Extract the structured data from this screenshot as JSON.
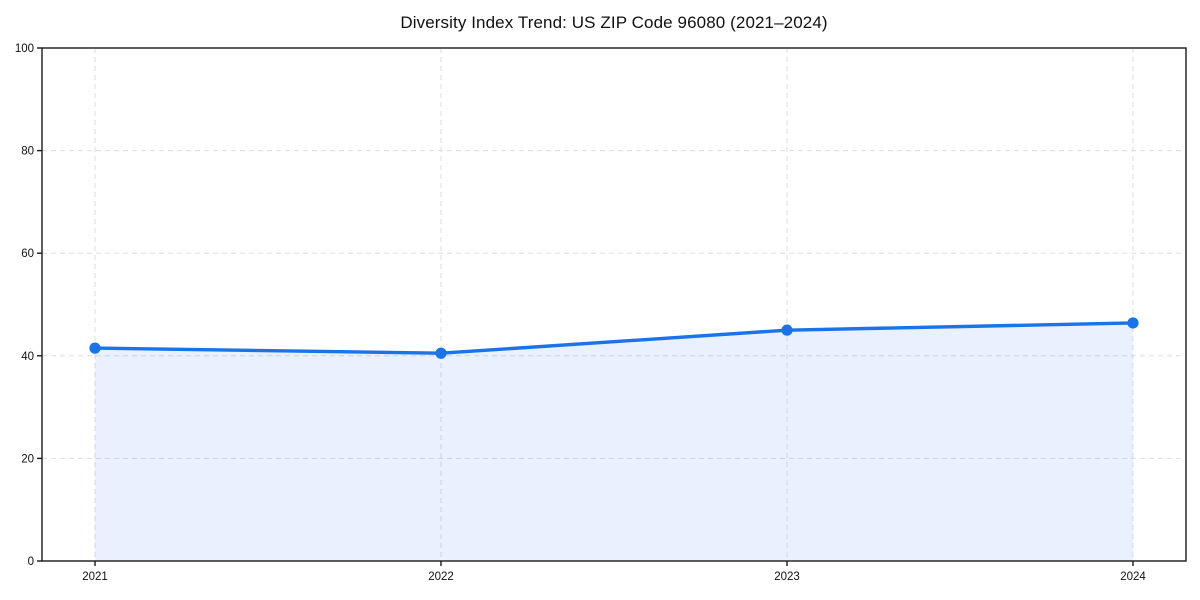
{
  "chart": {
    "title": "Diversity Index Trend: US ZIP Code 96080 (2021–2024)"
  },
  "chart_data": {
    "type": "area",
    "title": "Diversity Index Trend: US ZIP Code 96080 (2021–2024)",
    "xlabel": "",
    "ylabel": "",
    "x": [
      2021,
      2022,
      2023,
      2024
    ],
    "xticks": [
      "2021",
      "2022",
      "2023",
      "2024"
    ],
    "series": [
      {
        "name": "Diversity Index",
        "values": [
          41.5,
          40.5,
          45.0,
          46.4
        ]
      }
    ],
    "ylim": [
      0,
      100
    ],
    "yticks": [
      0,
      20,
      40,
      60,
      80,
      100
    ],
    "grid": true,
    "grid_style": "dashed",
    "legend_position": "none",
    "colors": {
      "line": "#1a73e8",
      "marker": "#1a73e8",
      "fill": "#1a73e8",
      "fill_opacity": "0.10",
      "grid": "#dedede",
      "spine": "#1a1a1a",
      "text": "#111111",
      "background": "#ffffff"
    }
  }
}
